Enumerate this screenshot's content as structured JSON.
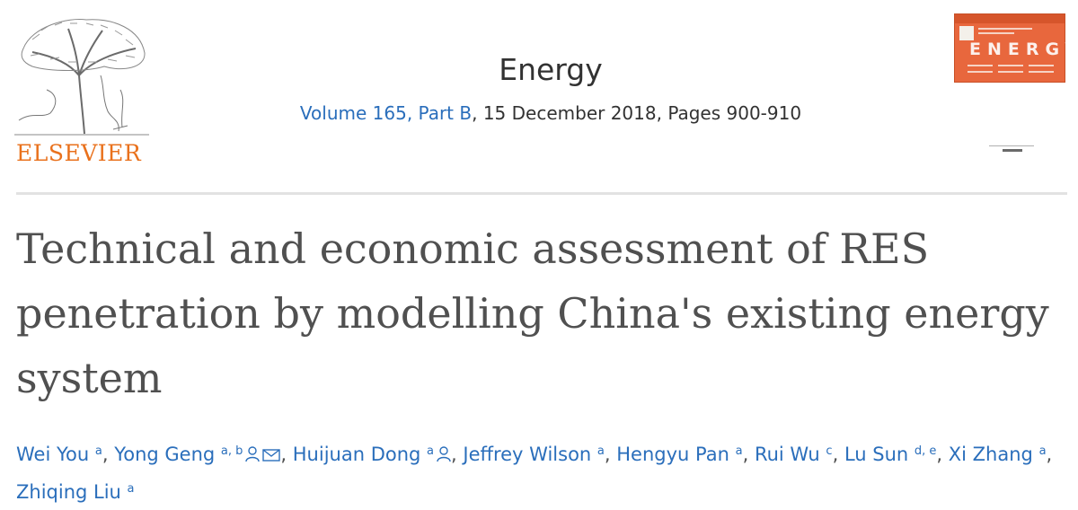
{
  "publisher": {
    "logo_text": "ELSEVIER",
    "brand_color": "#e9711c"
  },
  "journal": {
    "title": "Energy",
    "volume_link": "Volume 165, Part B",
    "issue_rest": ", 15 December 2018, Pages 900-910",
    "link_color": "#2a6ebb",
    "cover_word": "ENERGY",
    "cover_color": "#e8673d"
  },
  "article": {
    "title_lines": [
      "Technical and economic assessment of RES",
      "penetration by modelling China's existing energy",
      "system"
    ]
  },
  "authors": [
    {
      "name": "Wei You",
      "affil": "a"
    },
    {
      "name": "Yong Geng",
      "affil": "a, b",
      "icons": [
        "person-icon",
        "envelope-icon"
      ]
    },
    {
      "name": "Huijuan Dong",
      "affil": "a",
      "icons": [
        "person-icon"
      ]
    },
    {
      "name": "Jeffrey Wilson",
      "affil": "a"
    },
    {
      "name": "Hengyu Pan",
      "affil": "a"
    },
    {
      "name": "Rui Wu",
      "affil": "c"
    },
    {
      "name": "Lu Sun",
      "affil": "d, e"
    },
    {
      "name": "Xi Zhang",
      "affil": "a"
    },
    {
      "name": "Zhiqing Liu",
      "affil": "a"
    }
  ]
}
